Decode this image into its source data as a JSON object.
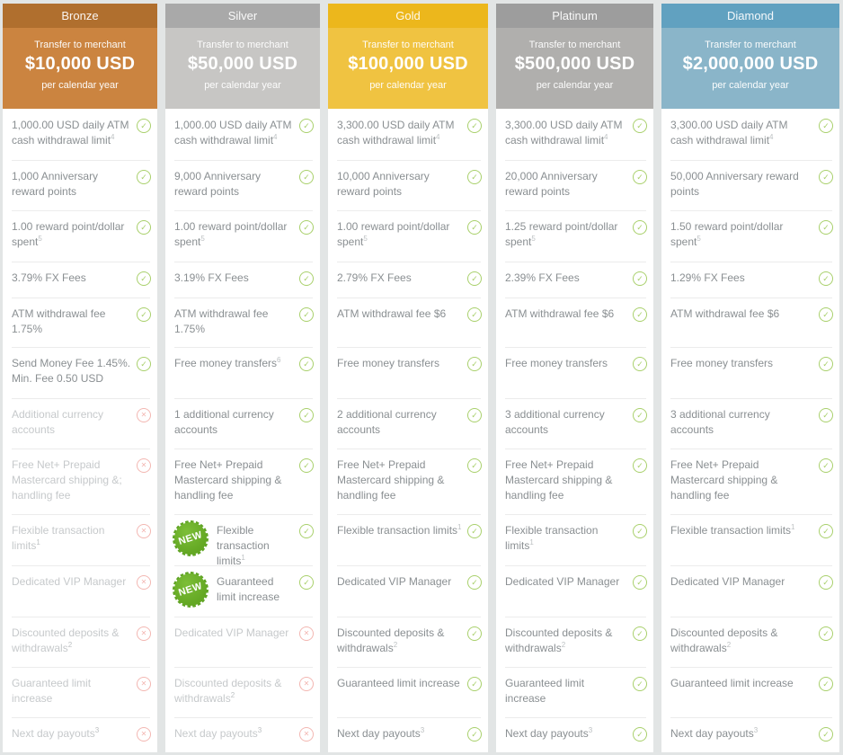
{
  "labels": {
    "new_badge": "NEW"
  },
  "icons": {
    "check": "✓",
    "cross": "✕"
  },
  "colors": {
    "check_green": "#a9d06c",
    "cross_pink": "#f3b7b2",
    "badge_green": "#68ad27",
    "page_background": "#e2e5e5"
  },
  "tiers": [
    {
      "name": "Bronze",
      "tab_color": "#b06f2e",
      "panel_color": "#cb8440",
      "transfer_label": "Transfer to merchant",
      "transfer_amount": "$10,000 USD",
      "transfer_period": "per calendar year",
      "features": [
        {
          "text": "1,000.00 USD daily ATM cash withdrawal limit",
          "sup": "4",
          "status": "included"
        },
        {
          "text": "1,000 Anniversary reward points",
          "status": "included"
        },
        {
          "text": "1.00 reward point/dollar spent",
          "sup": "5",
          "status": "included"
        },
        {
          "text": "3.79% FX Fees",
          "status": "included"
        },
        {
          "text": "ATM withdrawal fee 1.75%",
          "status": "included"
        },
        {
          "text": "Send Money Fee 1.45%. Min. Fee 0.50 USD",
          "status": "included"
        },
        {
          "text": "Additional currency accounts",
          "status": "excluded"
        },
        {
          "text": "Free Net+ Prepaid Mastercard shipping &; handling fee",
          "status": "excluded"
        },
        {
          "text": "Flexible transaction limits",
          "sup": "1",
          "status": "excluded"
        },
        {
          "text": "Dedicated VIP Manager",
          "status": "excluded"
        },
        {
          "text": "Discounted deposits & withdrawals",
          "sup": "2",
          "status": "excluded"
        },
        {
          "text": "Guaranteed limit increase",
          "status": "excluded"
        },
        {
          "text": "Next day payouts",
          "sup": "3",
          "status": "excluded"
        }
      ]
    },
    {
      "name": "Silver",
      "tab_color": "#a9a9a9",
      "panel_color": "#c7c6c4",
      "transfer_label": "Transfer to merchant",
      "transfer_amount": "$50,000 USD",
      "transfer_period": "per calendar year",
      "features": [
        {
          "text": "1,000.00 USD daily ATM cash withdrawal limit",
          "sup": "4",
          "status": "included"
        },
        {
          "text": "9,000 Anniversary reward points",
          "status": "included"
        },
        {
          "text": "1.00 reward point/dollar spent",
          "sup": "5",
          "status": "included"
        },
        {
          "text": "3.19% FX Fees",
          "status": "included"
        },
        {
          "text": "ATM withdrawal fee 1.75%",
          "status": "included"
        },
        {
          "text": "Free money transfers",
          "sup": "6",
          "status": "included"
        },
        {
          "text": "1 additional currency accounts",
          "status": "included"
        },
        {
          "text": "Free Net+ Prepaid Mastercard shipping & handling fee",
          "status": "included"
        },
        {
          "text": "Flexible transaction limits",
          "sup": "1",
          "status": "included",
          "new": true
        },
        {
          "text": "Guaranteed limit increase",
          "status": "included",
          "new": true
        },
        {
          "text": "Dedicated VIP Manager",
          "status": "excluded"
        },
        {
          "text": "Discounted deposits & withdrawals",
          "sup": "2",
          "status": "excluded"
        },
        {
          "text": "Next day payouts",
          "sup": "3",
          "status": "excluded"
        }
      ]
    },
    {
      "name": "Gold",
      "tab_color": "#ecb71c",
      "panel_color": "#f0c341",
      "transfer_label": "Transfer to merchant",
      "transfer_amount": "$100,000 USD",
      "transfer_period": "per calendar year",
      "features": [
        {
          "text": "3,300.00 USD daily ATM cash withdrawal limit",
          "sup": "4",
          "status": "included"
        },
        {
          "text": "10,000 Anniversary reward points",
          "status": "included"
        },
        {
          "text": "1.00 reward point/dollar spent",
          "sup": "5",
          "status": "included"
        },
        {
          "text": "2.79% FX Fees",
          "status": "included"
        },
        {
          "text": "ATM withdrawal fee $6",
          "status": "included"
        },
        {
          "text": "Free money transfers",
          "status": "included"
        },
        {
          "text": "2 additional currency accounts",
          "status": "included"
        },
        {
          "text": "Free Net+ Prepaid Mastercard shipping & handling fee",
          "status": "included"
        },
        {
          "text": "Flexible transaction limits",
          "sup": "1",
          "status": "included"
        },
        {
          "text": "Dedicated VIP Manager",
          "status": "included"
        },
        {
          "text": "Discounted deposits & withdrawals",
          "sup": "2",
          "status": "included"
        },
        {
          "text": "Guaranteed limit increase",
          "status": "included"
        },
        {
          "text": "Next day payouts",
          "sup": "3",
          "status": "included"
        }
      ]
    },
    {
      "name": "Platinum",
      "tab_color": "#9d9d9d",
      "panel_color": "#b0afad",
      "transfer_label": "Transfer to merchant",
      "transfer_amount": "$500,000 USD",
      "transfer_period": "per calendar year",
      "features": [
        {
          "text": "3,300.00 USD daily ATM cash withdrawal limit",
          "sup": "4",
          "status": "included"
        },
        {
          "text": "20,000 Anniversary reward points",
          "status": "included"
        },
        {
          "text": "1.25 reward point/dollar spent",
          "sup": "5",
          "status": "included"
        },
        {
          "text": "2.39% FX Fees",
          "status": "included"
        },
        {
          "text": "ATM withdrawal fee $6",
          "status": "included"
        },
        {
          "text": "Free money transfers",
          "status": "included"
        },
        {
          "text": "3 additional currency accounts",
          "status": "included"
        },
        {
          "text": "Free Net+ Prepaid Mastercard shipping & handling fee",
          "status": "included"
        },
        {
          "text": "Flexible transaction limits",
          "sup": "1",
          "status": "included"
        },
        {
          "text": "Dedicated VIP Manager",
          "status": "included"
        },
        {
          "text": "Discounted deposits & withdrawals",
          "sup": "2",
          "status": "included"
        },
        {
          "text": "Guaranteed limit increase",
          "status": "included"
        },
        {
          "text": "Next day payouts",
          "sup": "3",
          "status": "included"
        }
      ]
    },
    {
      "name": "Diamond",
      "tab_color": "#61a1c0",
      "panel_color": "#8ab5c9",
      "transfer_label": "Transfer to merchant",
      "transfer_amount": "$2,000,000 USD",
      "transfer_period": "per calendar year",
      "features": [
        {
          "text": "3,300.00 USD daily ATM cash withdrawal limit",
          "sup": "4",
          "status": "included"
        },
        {
          "text": "50,000 Anniversary reward points",
          "status": "included"
        },
        {
          "text": "1.50 reward point/dollar spent",
          "sup": "5",
          "status": "included"
        },
        {
          "text": "1.29% FX Fees",
          "status": "included"
        },
        {
          "text": "ATM withdrawal fee $6",
          "status": "included"
        },
        {
          "text": "Free money transfers",
          "status": "included"
        },
        {
          "text": "3 additional currency accounts",
          "status": "included"
        },
        {
          "text": "Free Net+ Prepaid Mastercard shipping & handling fee",
          "status": "included"
        },
        {
          "text": "Flexible transaction limits",
          "sup": "1",
          "status": "included"
        },
        {
          "text": "Dedicated VIP Manager",
          "status": "included"
        },
        {
          "text": "Discounted deposits & withdrawals",
          "sup": "2",
          "status": "included"
        },
        {
          "text": "Guaranteed limit increase",
          "status": "included"
        },
        {
          "text": "Next day payouts",
          "sup": "3",
          "status": "included"
        }
      ]
    }
  ]
}
